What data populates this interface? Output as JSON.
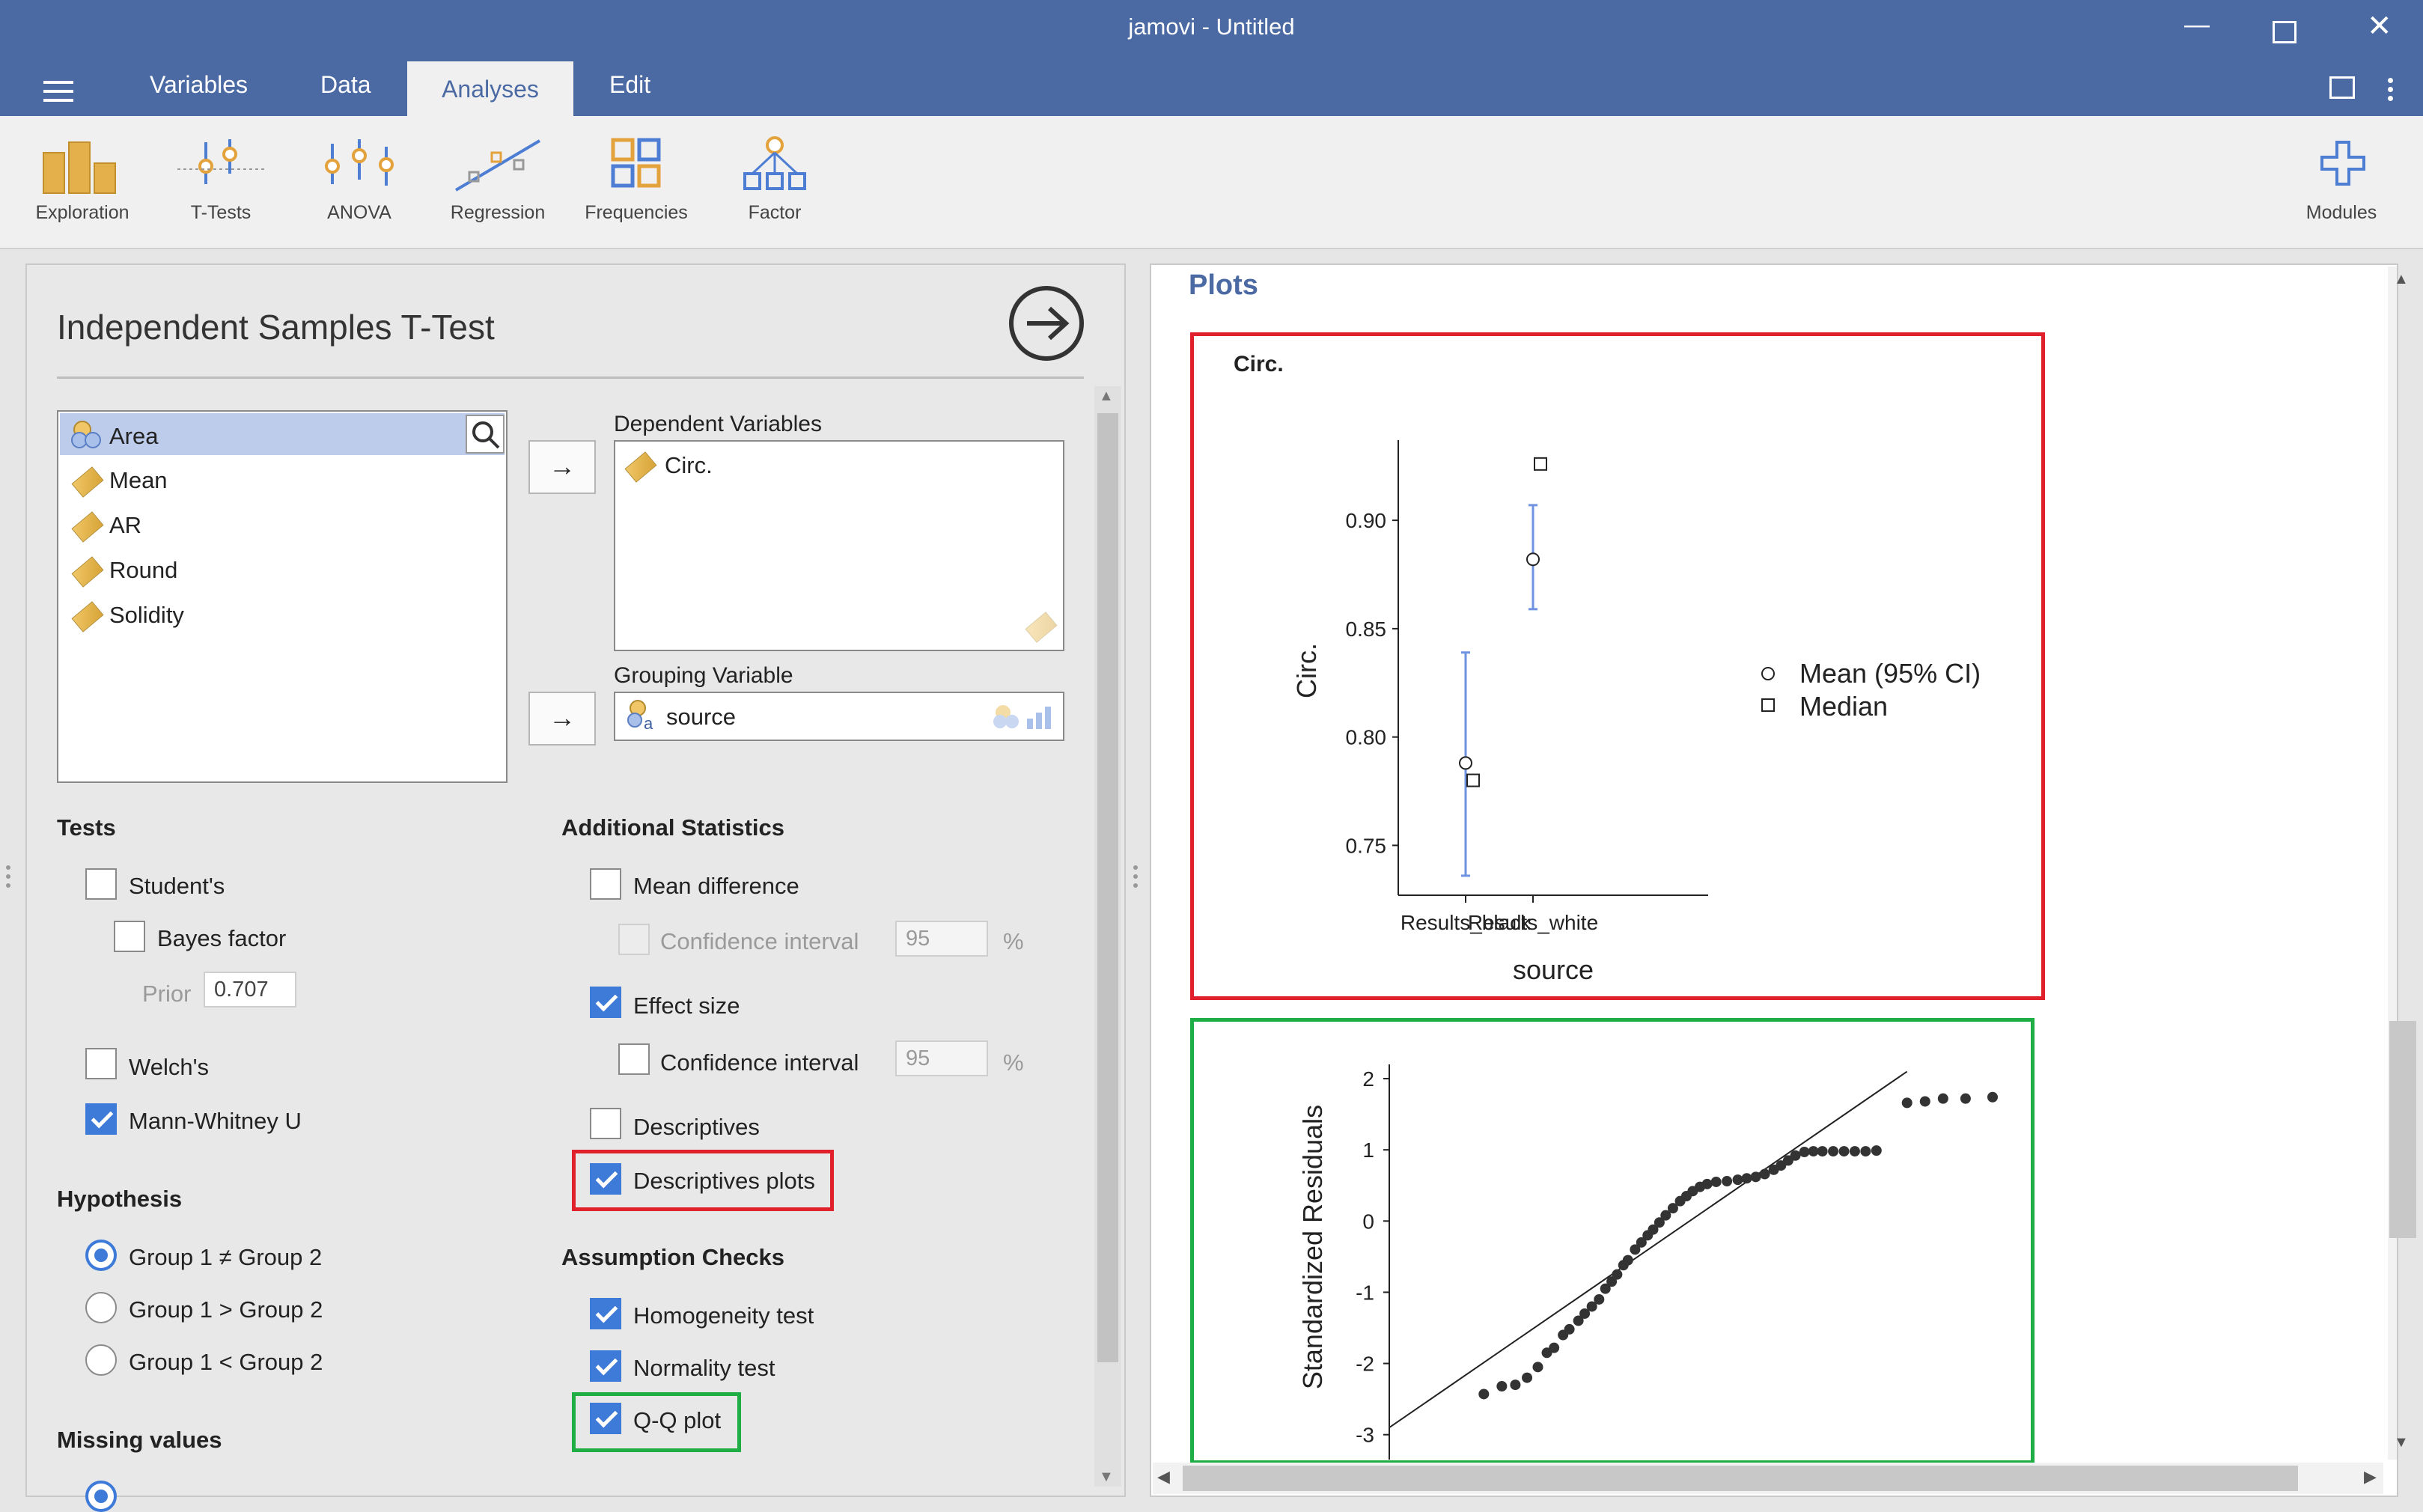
{
  "window": {
    "title": "jamovi - Untitled"
  },
  "menu": {
    "tabs": [
      "Variables",
      "Data",
      "Analyses",
      "Edit"
    ]
  },
  "ribbon": {
    "items": [
      "Exploration",
      "T-Tests",
      "ANOVA",
      "Regression",
      "Frequencies",
      "Factor"
    ],
    "modules": "Modules"
  },
  "analysis": {
    "title": "Independent Samples T-Test",
    "variables": [
      "Area",
      "Mean",
      "AR",
      "Round",
      "Solidity"
    ],
    "dependent_label": "Dependent Variables",
    "dependent_value": "Circ.",
    "grouping_label": "Grouping Variable",
    "grouping_value": "source",
    "tests": {
      "header": "Tests",
      "students": "Student's",
      "bayes": "Bayes factor",
      "prior_label": "Prior",
      "prior_value": "0.707",
      "welch": "Welch's",
      "mann": "Mann-Whitney U"
    },
    "hypothesis": {
      "header": "Hypothesis",
      "opt1": "Group 1 ≠ Group 2",
      "opt2": "Group 1 > Group 2",
      "opt3": "Group 1 < Group 2"
    },
    "missing": {
      "header": "Missing values"
    },
    "additional": {
      "header": "Additional Statistics",
      "mean_diff": "Mean difference",
      "ci1": "Confidence interval",
      "ci1_value": "95",
      "ci1_unit": "%",
      "effect": "Effect size",
      "ci2": "Confidence interval",
      "ci2_value": "95",
      "ci2_unit": "%",
      "descriptives": "Descriptives",
      "desc_plots": "Descriptives plots"
    },
    "assumptions": {
      "header": "Assumption Checks",
      "homogeneity": "Homogeneity test",
      "normality": "Normality test",
      "qq": "Q-Q plot"
    }
  },
  "results": {
    "heading": "Plots"
  },
  "chart_data": [
    {
      "type": "scatter",
      "title": "Circ.",
      "xlabel": "source",
      "ylabel": "Circ.",
      "categories": [
        "Results_black",
        "Results_white"
      ],
      "series": [
        {
          "name": "Mean (95% CI)",
          "values": [
            0.788,
            0.882
          ],
          "ci_low": [
            0.736,
            0.859
          ],
          "ci_high": [
            0.839,
            0.907
          ]
        },
        {
          "name": "Median",
          "values": [
            0.78,
            0.926
          ]
        }
      ],
      "yticks": [
        "0.75",
        "0.80",
        "0.85",
        "0.90"
      ],
      "ylim": [
        0.727,
        0.937
      ],
      "legend": "right"
    },
    {
      "type": "scatter",
      "title": "",
      "xlabel": "",
      "ylabel": "Standardized Residuals",
      "yticks": [
        "2",
        "1",
        "0",
        "-1",
        "-2",
        "-3"
      ],
      "ylim": [
        -3.35,
        2.2
      ],
      "xlim": [
        -3.35,
        3.4
      ],
      "reference_line": [
        [
          -3.35,
          -2.9
        ],
        [
          2.4,
          2.1
        ]
      ],
      "points": [
        [
          -2.3,
          -2.43
        ],
        [
          -2.1,
          -2.32
        ],
        [
          -1.95,
          -2.3
        ],
        [
          -1.82,
          -2.2
        ],
        [
          -1.7,
          -2.05
        ],
        [
          -1.6,
          -1.85
        ],
        [
          -1.52,
          -1.78
        ],
        [
          -1.42,
          -1.6
        ],
        [
          -1.35,
          -1.52
        ],
        [
          -1.25,
          -1.4
        ],
        [
          -1.18,
          -1.3
        ],
        [
          -1.1,
          -1.2
        ],
        [
          -1.02,
          -1.1
        ],
        [
          -0.95,
          -0.95
        ],
        [
          -0.88,
          -0.85
        ],
        [
          -0.82,
          -0.75
        ],
        [
          -0.75,
          -0.62
        ],
        [
          -0.7,
          -0.55
        ],
        [
          -0.62,
          -0.4
        ],
        [
          -0.55,
          -0.3
        ],
        [
          -0.48,
          -0.2
        ],
        [
          -0.42,
          -0.12
        ],
        [
          -0.35,
          -0.02
        ],
        [
          -0.28,
          0.08
        ],
        [
          -0.2,
          0.18
        ],
        [
          -0.12,
          0.28
        ],
        [
          -0.05,
          0.35
        ],
        [
          0.02,
          0.42
        ],
        [
          0.1,
          0.48
        ],
        [
          0.18,
          0.52
        ],
        [
          0.28,
          0.55
        ],
        [
          0.4,
          0.56
        ],
        [
          0.52,
          0.58
        ],
        [
          0.62,
          0.6
        ],
        [
          0.72,
          0.62
        ],
        [
          0.82,
          0.66
        ],
        [
          0.92,
          0.72
        ],
        [
          1.0,
          0.78
        ],
        [
          1.08,
          0.85
        ],
        [
          1.16,
          0.92
        ],
        [
          1.26,
          0.97
        ],
        [
          1.36,
          0.98
        ],
        [
          1.46,
          0.98
        ],
        [
          1.58,
          0.98
        ],
        [
          1.7,
          0.98
        ],
        [
          1.82,
          0.98
        ],
        [
          1.94,
          0.98
        ],
        [
          2.06,
          0.99
        ],
        [
          2.4,
          1.66
        ],
        [
          2.6,
          1.68
        ],
        [
          2.8,
          1.72
        ],
        [
          3.05,
          1.72
        ],
        [
          3.35,
          1.74
        ]
      ]
    }
  ]
}
